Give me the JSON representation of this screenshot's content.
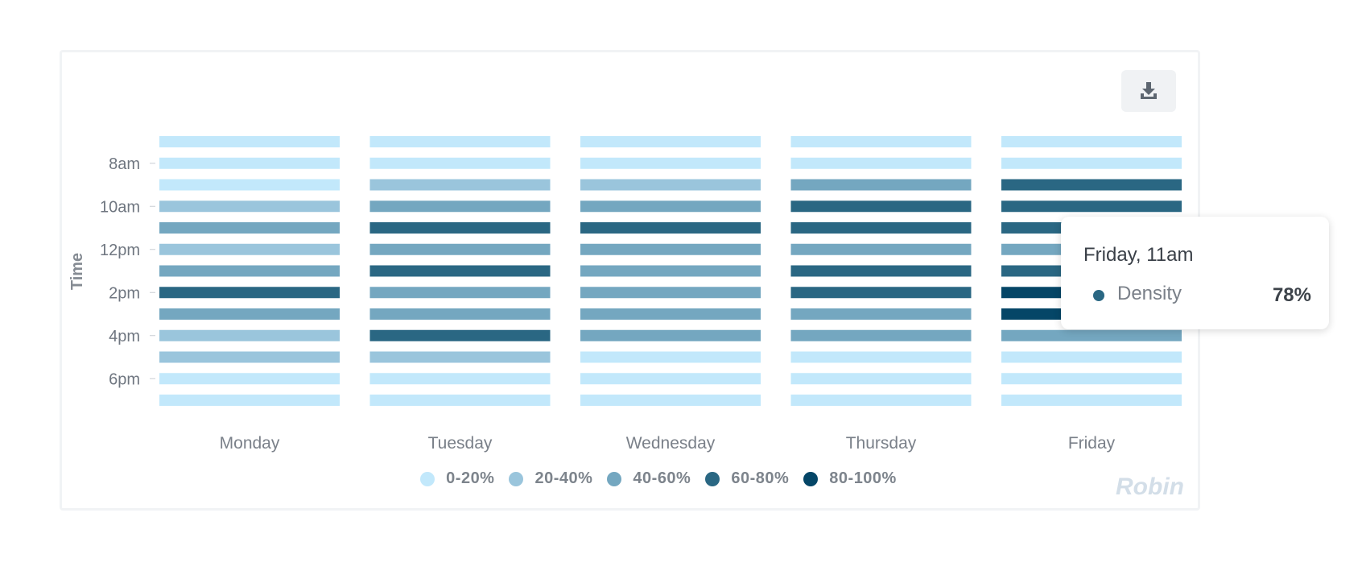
{
  "chart_data": {
    "type": "heatmap",
    "ylabel": "Time",
    "x_categories": [
      "Monday",
      "Tuesday",
      "Wednesday",
      "Thursday",
      "Friday"
    ],
    "y_tick_labels": [
      "8am",
      "10am",
      "12pm",
      "2pm",
      "4pm",
      "6pm"
    ],
    "bins": [
      "0-20%",
      "20-40%",
      "40-60%",
      "60-80%",
      "80-100%"
    ],
    "bin_colors": [
      "#c2e8fb",
      "#9ac5dc",
      "#74a7c0",
      "#2a6783",
      "#054667"
    ],
    "rows_per_day": 13,
    "level_matrix": [
      [
        0,
        0,
        0,
        1,
        2,
        1,
        2,
        3,
        2,
        1,
        1,
        0,
        0
      ],
      [
        0,
        0,
        1,
        2,
        3,
        2,
        3,
        2,
        2,
        3,
        1,
        0,
        0
      ],
      [
        0,
        0,
        1,
        2,
        3,
        2,
        2,
        2,
        2,
        2,
        0,
        0,
        0
      ],
      [
        0,
        0,
        2,
        3,
        3,
        2,
        3,
        3,
        2,
        2,
        0,
        0,
        0
      ],
      [
        0,
        0,
        3,
        3,
        3,
        2,
        3,
        4,
        4,
        2,
        0,
        0,
        0
      ]
    ]
  },
  "tooltip": {
    "title": "Friday, 11am",
    "series_name": "Density",
    "value": "78%",
    "dot_color": "#2a6783"
  },
  "watermark": "Robin",
  "download_icon": "download-icon"
}
